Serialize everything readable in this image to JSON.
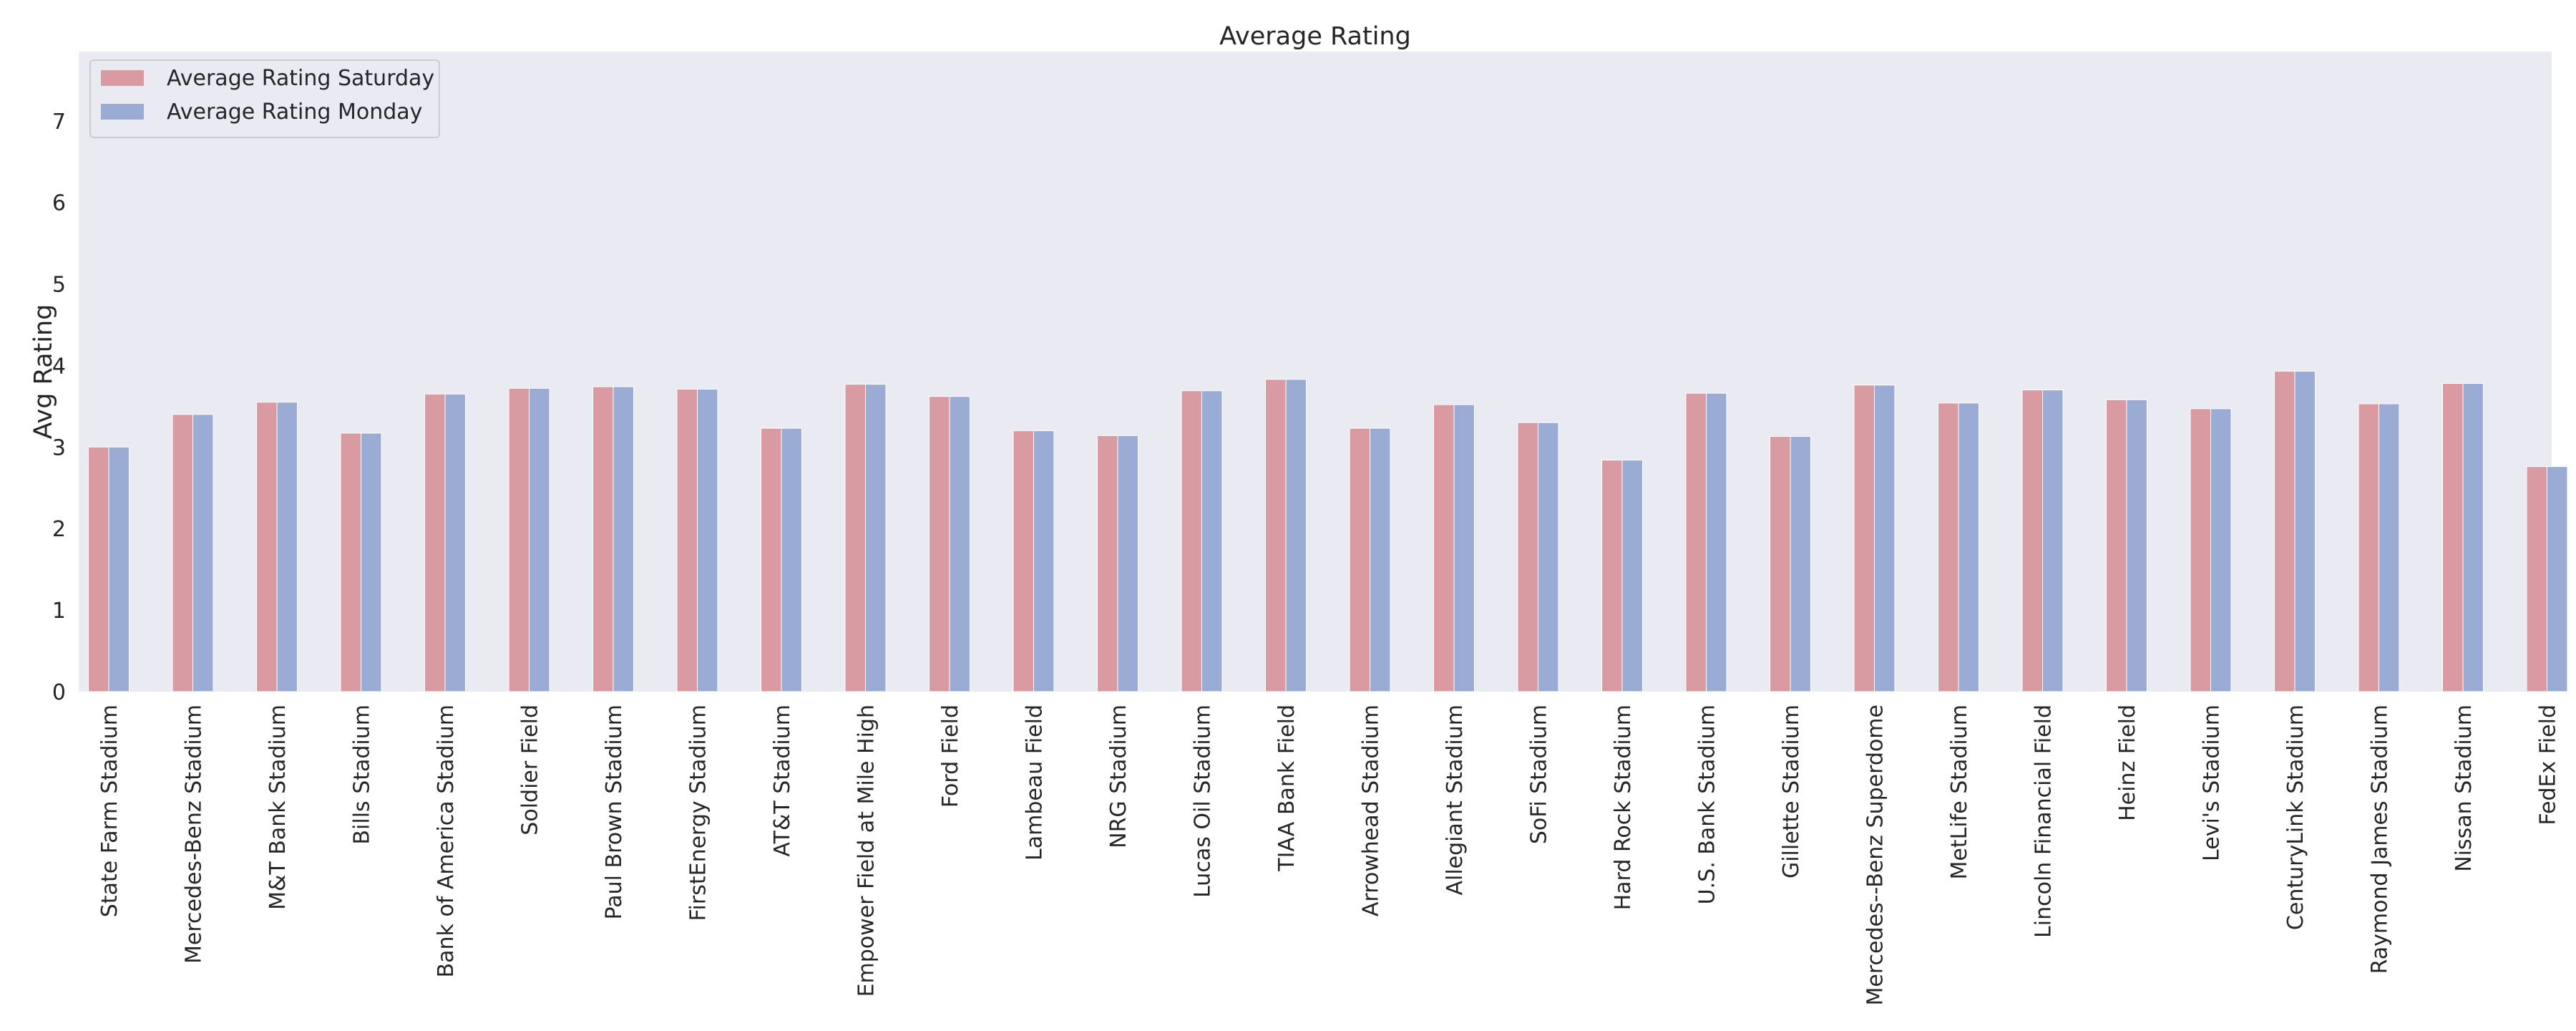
{
  "chart_data": {
    "type": "bar",
    "title": "Average Rating",
    "xlabel": "",
    "ylabel": "Avg Rating",
    "ylim": [
      0,
      7.85
    ],
    "yticks": [
      0,
      1,
      2,
      3,
      4,
      5,
      6,
      7
    ],
    "grid": false,
    "legend_position": "top-left",
    "background_color": "#eaeaf2",
    "categories": [
      "State Farm Stadium",
      "Mercedes-Benz Stadium",
      "M&T Bank Stadium",
      "Bills Stadium",
      "Bank of America Stadium",
      "Soldier Field",
      "Paul Brown Stadium",
      "FirstEnergy Stadium",
      "AT&T Stadium",
      "Empower Field at Mile High",
      "Ford Field",
      "Lambeau Field",
      "NRG Stadium",
      "Lucas Oil Stadium",
      "TIAA Bank Field",
      "Arrowhead Stadium",
      "Allegiant Stadium",
      "SoFi Stadium",
      "Hard Rock Stadium",
      "U.S. Bank Stadium",
      "Gillette Stadium",
      "Mercedes--Benz Superdome",
      "MetLife Stadium",
      "Lincoln Financial Field",
      "Heinz Field",
      "Levi's Stadium",
      "CenturyLink Stadium",
      "Raymond James Stadium",
      "Nissan Stadium",
      "FedEx Field"
    ],
    "series": [
      {
        "name": "Average Rating Saturday",
        "color": "#d99ba1",
        "values": [
          3.0,
          3.4,
          3.55,
          3.17,
          3.65,
          3.72,
          3.74,
          3.71,
          3.23,
          3.77,
          3.62,
          3.2,
          3.14,
          3.69,
          3.83,
          3.23,
          3.52,
          3.3,
          2.84,
          3.66,
          3.13,
          3.76,
          3.54,
          3.7,
          3.58,
          3.47,
          3.93,
          3.53,
          3.78,
          2.76
        ]
      },
      {
        "name": "Average Rating Monday",
        "color": "#9aacd4",
        "values": [
          3.0,
          3.4,
          3.55,
          3.17,
          3.65,
          3.72,
          3.74,
          3.71,
          3.23,
          3.77,
          3.62,
          3.2,
          3.14,
          3.69,
          3.83,
          3.23,
          3.52,
          3.3,
          2.84,
          3.66,
          3.13,
          3.76,
          3.54,
          3.7,
          3.58,
          3.47,
          3.93,
          3.53,
          3.78,
          2.76
        ]
      }
    ]
  }
}
